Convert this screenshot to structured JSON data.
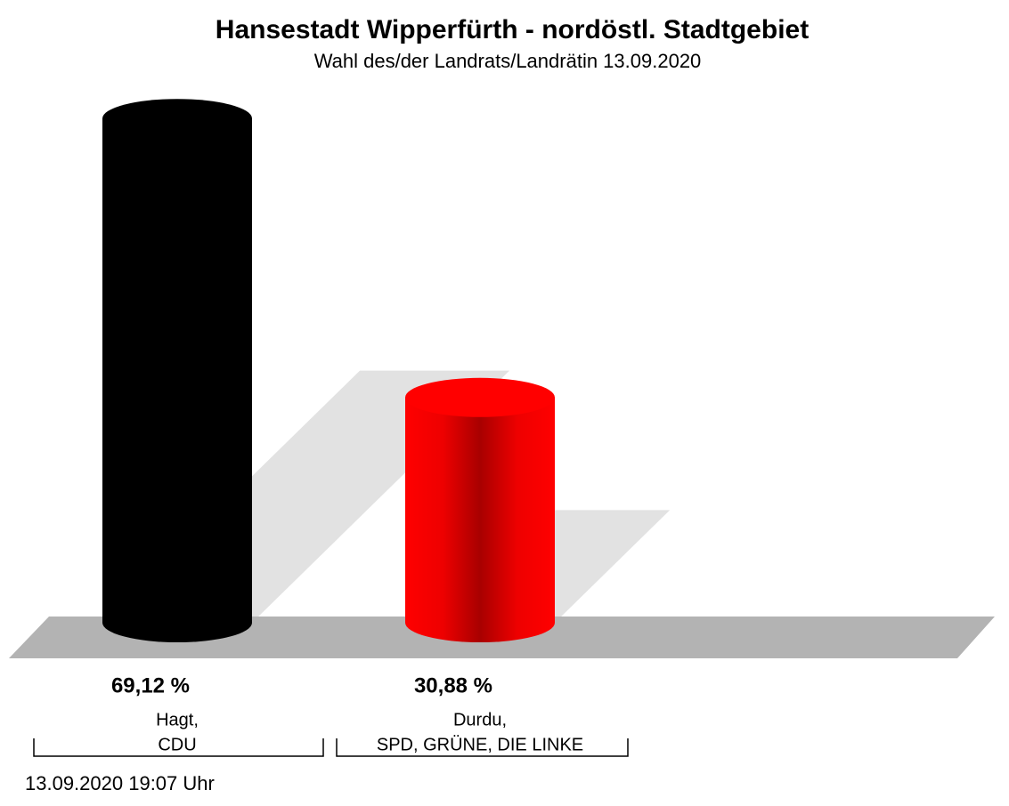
{
  "chart_data": {
    "type": "bar",
    "title": "Hansestadt Wipperfürth - nordöstl. Stadtgebiet",
    "subtitle": "Wahl des/der Landrats/Landrätin 13.09.2020",
    "categories": [
      [
        "Hagt,",
        "CDU"
      ],
      [
        "Durdu,",
        "SPD, GRÜNE, DIE LINKE"
      ]
    ],
    "values": [
      69.12,
      30.88
    ],
    "value_labels": [
      "69,12 %",
      "30,88 %"
    ],
    "colors": [
      "#000000",
      "#ff0000"
    ],
    "footer": "13.09.2020 19:07 Uhr"
  }
}
